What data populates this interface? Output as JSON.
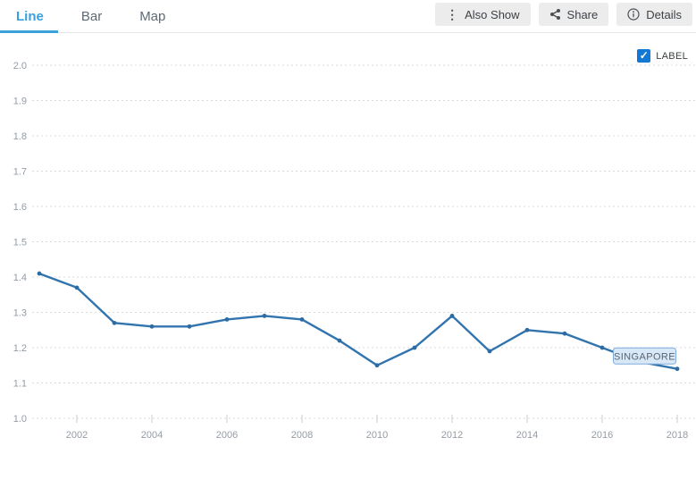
{
  "tabs": [
    {
      "label": "Line",
      "active": true
    },
    {
      "label": "Bar",
      "active": false
    },
    {
      "label": "Map",
      "active": false
    }
  ],
  "toolbar": {
    "also_show_label": "Also Show",
    "share_label": "Share",
    "details_label": "Details"
  },
  "legend": {
    "label_checkbox_text": "LABEL",
    "checked": true,
    "checkmark": "✓"
  },
  "annotation": {
    "text": "SINGAPORE",
    "year": 2017
  },
  "colors": {
    "accent_blue": "#3aa0dc",
    "tab_inactive": "#5d6a75",
    "line": "#3274ae",
    "marker": "#2d6ba3",
    "grid": "#d8dbde",
    "axis_text": "#949ca4",
    "tick": "#c9cdd1",
    "checkbox_blue": "#1278d3",
    "button_bg": "#ececec",
    "button_text": "#3d4247",
    "annotation_fill": "#d8e8f7",
    "annotation_border": "#7fabd8",
    "annotation_text": "#5a646e"
  },
  "chart_data": {
    "type": "line",
    "title": "",
    "xlabel": "",
    "ylabel": "",
    "x": [
      2001,
      2002,
      2003,
      2004,
      2005,
      2006,
      2007,
      2008,
      2009,
      2010,
      2011,
      2012,
      2013,
      2014,
      2015,
      2016,
      2017,
      2018
    ],
    "series": [
      {
        "name": "SINGAPORE",
        "values": [
          1.41,
          1.37,
          1.27,
          1.26,
          1.26,
          1.28,
          1.29,
          1.28,
          1.22,
          1.15,
          1.2,
          1.29,
          1.19,
          1.25,
          1.24,
          1.2,
          1.16,
          1.14
        ]
      }
    ],
    "ylim": [
      1.0,
      2.0
    ],
    "y_tick_step": 0.1,
    "y_tick_labels": [
      "2.0",
      "1.9",
      "1.8",
      "1.7",
      "1.6",
      "1.5",
      "1.4",
      "1.3",
      "1.2",
      "1.1",
      "1.0"
    ],
    "x_tick_labels": [
      "2002",
      "2004",
      "2006",
      "2008",
      "2010",
      "2012",
      "2014",
      "2016",
      "2018"
    ],
    "grid": "horizontal-dashed",
    "legend_position": "none"
  }
}
